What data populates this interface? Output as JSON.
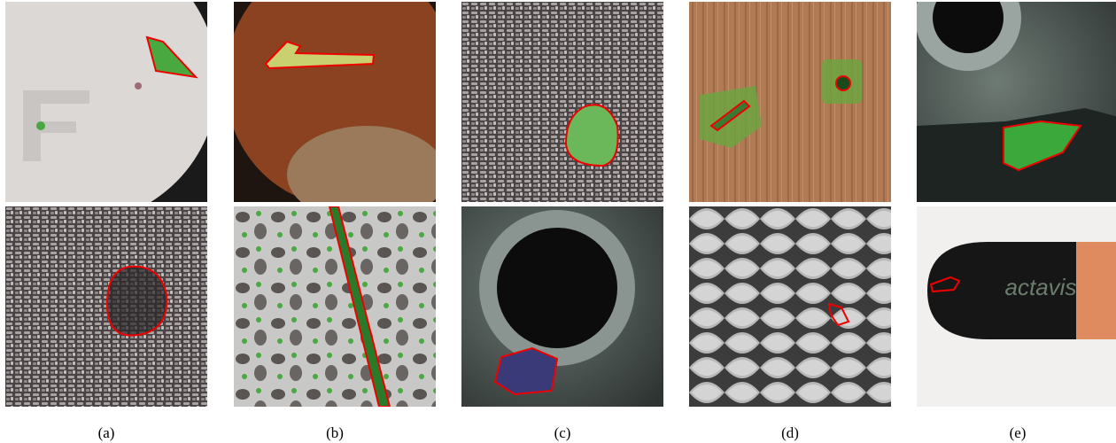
{
  "panels": [
    {
      "label": "(a)"
    },
    {
      "label": "(b)"
    },
    {
      "label": "(c)"
    },
    {
      "label": "(d)"
    },
    {
      "label": "(e)",
      "capsule_text": "actavis"
    }
  ]
}
